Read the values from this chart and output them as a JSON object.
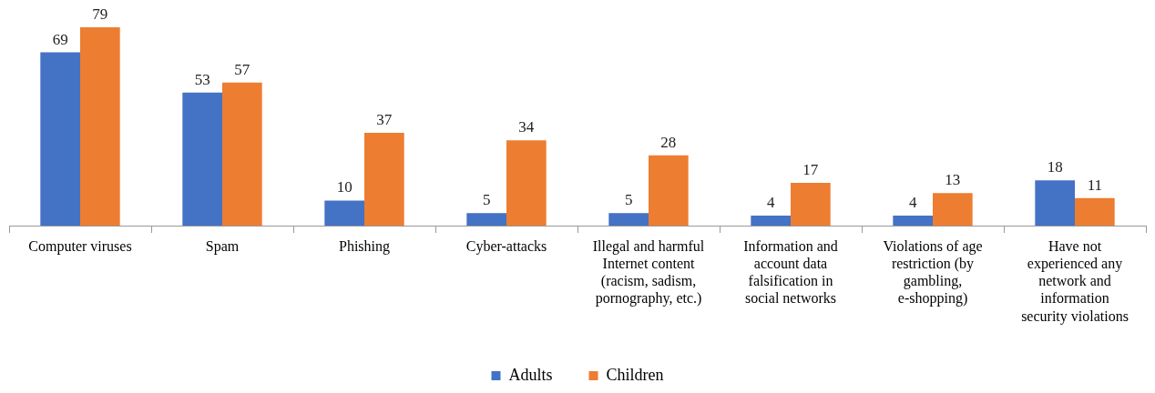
{
  "chart_data": {
    "type": "bar",
    "categories": [
      "Computer viruses",
      "Spam",
      "Phishing",
      "Cyber-attacks",
      "Illegal and harmful Internet content (racism, sadism, pornography, etc.)",
      "Information and account data falsification in social networks",
      "Violations of age restriction (by gambling, e-shopping)",
      "Have not experienced any network and information security violations"
    ],
    "series": [
      {
        "name": "Adults",
        "color": "#4472c4",
        "values": [
          69,
          53,
          10,
          5,
          5,
          4,
          4,
          18
        ]
      },
      {
        "name": "Children",
        "color": "#ed7d31",
        "values": [
          79,
          57,
          37,
          34,
          28,
          17,
          13,
          11
        ]
      }
    ],
    "data_labels": true,
    "grid": false,
    "legend": "bottom"
  }
}
